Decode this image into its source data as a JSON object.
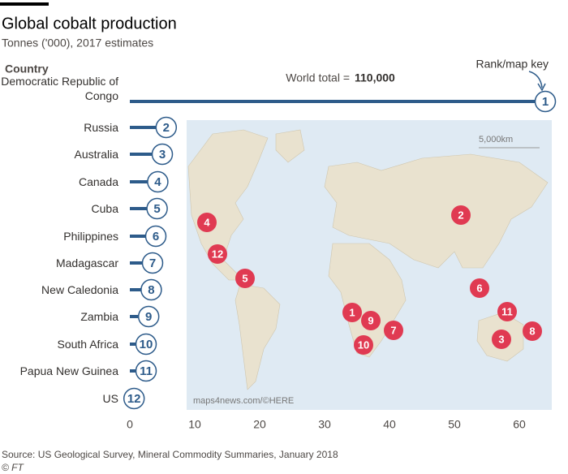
{
  "chart_data": {
    "type": "lollipop",
    "title": "Global cobalt production",
    "subtitle": "Tonnes ('000), 2017 estimates",
    "y_axis_label": "Country",
    "key_label": "Rank/map key",
    "annotation": "World total =",
    "annotation_value": "110,000",
    "categories": [
      "Democratic Republic of Congo",
      "Russia",
      "Australia",
      "Canada",
      "Cuba",
      "Philippines",
      "Madagascar",
      "New Caledonia",
      "Zambia",
      "South Africa",
      "Papua New Guinea",
      "US"
    ],
    "ranks": [
      "1",
      "2",
      "3",
      "4",
      "5",
      "6",
      "7",
      "8",
      "9",
      "10",
      "11",
      "12"
    ],
    "values": [
      64,
      5.6,
      5.0,
      4.3,
      4.2,
      4.0,
      3.5,
      3.3,
      2.9,
      2.5,
      2.5,
      0.65
    ],
    "color": "#2d5b8a",
    "marker_color": "#e03a52",
    "xlim": [
      0,
      65
    ],
    "xticks": [
      0,
      10,
      20,
      30,
      40,
      50,
      60
    ],
    "map_scale": "5,000km",
    "map_credit": "maps4news.com/©HERE",
    "source": "Source: US Geological Survey, Mineral Commodity Summaries, January 2018",
    "copyright": "© FT"
  }
}
